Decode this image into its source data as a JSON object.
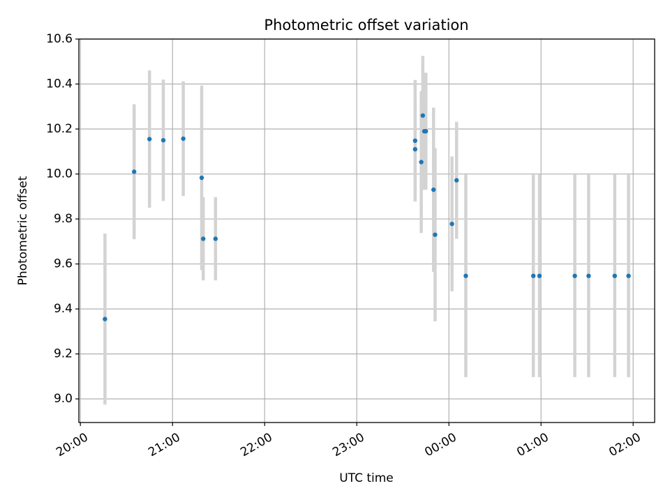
{
  "chart_data": {
    "type": "scatter",
    "title": "Photometric offset variation",
    "xlabel": "UTC time",
    "ylabel": "Photometric offset",
    "grid": true,
    "legend": "none",
    "ylim": [
      8.895,
      10.6
    ],
    "xlim": [
      "19:59",
      "02:14"
    ],
    "xticks": [
      "20:00",
      "21:00",
      "22:00",
      "23:00",
      "00:00",
      "01:00",
      "02:00"
    ],
    "yticks": [
      "9.0",
      "9.2",
      "9.4",
      "9.6",
      "9.8",
      "10.0",
      "10.2",
      "10.4",
      "10.6"
    ],
    "colors": {
      "point": "#1f77b4",
      "errorbar": "#d3d3d3",
      "grid": "#b0b0b0"
    },
    "points": [
      {
        "x": "20:16",
        "y": 9.355,
        "yerr": 0.38
      },
      {
        "x": "20:35",
        "y": 10.01,
        "yerr": 0.3
      },
      {
        "x": "20:45",
        "y": 10.155,
        "yerr": 0.305
      },
      {
        "x": "20:54",
        "y": 10.15,
        "yerr": 0.27
      },
      {
        "x": "21:07",
        "y": 10.157,
        "yerr": 0.255
      },
      {
        "x": "21:19",
        "y": 9.983,
        "yerr": 0.41
      },
      {
        "x": "21:20",
        "y": 9.712,
        "yerr": 0.185
      },
      {
        "x": "21:28",
        "y": 9.712,
        "yerr": 0.185
      },
      {
        "x": "23:38",
        "y": 10.11,
        "yerr": 0.23
      },
      {
        "x": "23:38",
        "y": 10.148,
        "yerr": 0.27
      },
      {
        "x": "23:42",
        "y": 10.053,
        "yerr": 0.315
      },
      {
        "x": "23:43",
        "y": 10.26,
        "yerr": 0.265
      },
      {
        "x": "23:44",
        "y": 10.19,
        "yerr": 0.26
      },
      {
        "x": "23:45",
        "y": 10.19,
        "yerr": 0.26
      },
      {
        "x": "23:50",
        "y": 9.93,
        "yerr": 0.365
      },
      {
        "x": "23:51",
        "y": 9.73,
        "yerr": 0.385
      },
      {
        "x": "00:02",
        "y": 9.778,
        "yerr": 0.3
      },
      {
        "x": "00:05",
        "y": 9.972,
        "yerr": 0.26
      },
      {
        "x": "00:11",
        "y": 9.547,
        "yerr": 0.45
      },
      {
        "x": "00:55",
        "y": 9.547,
        "yerr": 0.45
      },
      {
        "x": "00:59",
        "y": 9.547,
        "yerr": 0.45
      },
      {
        "x": "01:22",
        "y": 9.547,
        "yerr": 0.45
      },
      {
        "x": "01:31",
        "y": 9.547,
        "yerr": 0.45
      },
      {
        "x": "01:48",
        "y": 9.547,
        "yerr": 0.45
      },
      {
        "x": "01:57",
        "y": 9.547,
        "yerr": 0.45
      }
    ]
  }
}
